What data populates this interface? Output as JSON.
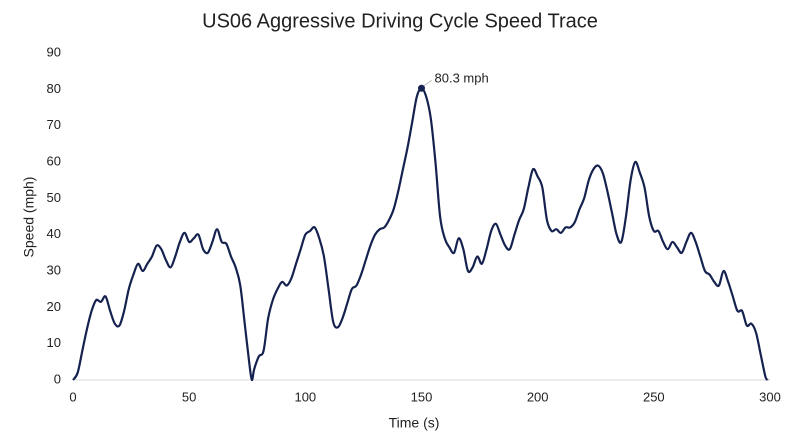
{
  "chart_data": {
    "type": "line",
    "title": "US06 Aggressive Driving Cycle Speed Trace",
    "x_label": "Time (s)",
    "y_label": "Speed (mph)",
    "x": [
      0,
      2,
      4,
      6,
      8,
      10,
      12,
      14,
      16,
      18,
      20,
      22,
      24,
      26,
      28,
      30,
      32,
      34,
      36,
      38,
      40,
      42,
      44,
      46,
      48,
      50,
      52,
      54,
      56,
      58,
      60,
      62,
      64,
      66,
      68,
      70,
      72,
      74,
      76,
      77,
      78,
      80,
      82,
      84,
      86,
      88,
      90,
      92,
      94,
      96,
      98,
      100,
      102,
      104,
      106,
      108,
      110,
      112,
      114,
      116,
      118,
      120,
      122,
      124,
      126,
      128,
      130,
      132,
      134,
      136,
      138,
      140,
      142,
      144,
      146,
      148,
      150,
      152,
      154,
      156,
      158,
      160,
      162,
      164,
      166,
      168,
      170,
      172,
      174,
      176,
      178,
      180,
      182,
      184,
      186,
      188,
      190,
      192,
      194,
      196,
      198,
      200,
      202,
      204,
      206,
      208,
      210,
      212,
      214,
      216,
      218,
      220,
      222,
      224,
      226,
      228,
      230,
      232,
      234,
      236,
      238,
      240,
      242,
      244,
      246,
      248,
      250,
      252,
      254,
      256,
      258,
      260,
      262,
      264,
      266,
      268,
      270,
      272,
      274,
      276,
      278,
      280,
      282,
      284,
      286,
      288,
      290,
      292,
      294,
      296,
      298,
      299
    ],
    "series": [
      {
        "name": "Speed",
        "color": "#15224f",
        "values": [
          0,
          2,
          8,
          14,
          19,
          22,
          21.5,
          23,
          19,
          15.5,
          15,
          19,
          25,
          29,
          32,
          30,
          32,
          34,
          37,
          36,
          33,
          31,
          34,
          38,
          40.5,
          38,
          39,
          40,
          36,
          35,
          38,
          41.5,
          38,
          37.5,
          34,
          31,
          26,
          15,
          4,
          0,
          3,
          6.5,
          8,
          17,
          22,
          25,
          27,
          26,
          28,
          32,
          36,
          40,
          41,
          42,
          39,
          34,
          25,
          16,
          14.5,
          17,
          21,
          25,
          26,
          29,
          33,
          37,
          40,
          41.5,
          42,
          44,
          47,
          52,
          58,
          64,
          71,
          78,
          80.3,
          78,
          72,
          60,
          45,
          39,
          36.5,
          35,
          39,
          36,
          30,
          31,
          34,
          32,
          36,
          41,
          43,
          40,
          37,
          36,
          40,
          44,
          47,
          53,
          58,
          56,
          53,
          44,
          41,
          41.5,
          40.5,
          42,
          42,
          43.5,
          47,
          50,
          55,
          58,
          59,
          57,
          52,
          46,
          40,
          38,
          45,
          55,
          60,
          57,
          53,
          45,
          41,
          41,
          38,
          36,
          38,
          36.5,
          35,
          38,
          40.5,
          38,
          34,
          30,
          29,
          27,
          26,
          30,
          27,
          23,
          19,
          19,
          15,
          15.5,
          13,
          7,
          1,
          0
        ]
      }
    ],
    "annotations": [
      {
        "text": "80.3 mph",
        "x": 150,
        "y": 80.3
      }
    ],
    "xlim": [
      0,
      300
    ],
    "xticks": [
      0,
      50,
      100,
      150,
      200,
      250,
      300
    ],
    "ylim": [
      0,
      90
    ],
    "yticks": [
      0,
      10,
      20,
      30,
      40,
      50,
      60,
      70,
      80,
      90
    ]
  }
}
